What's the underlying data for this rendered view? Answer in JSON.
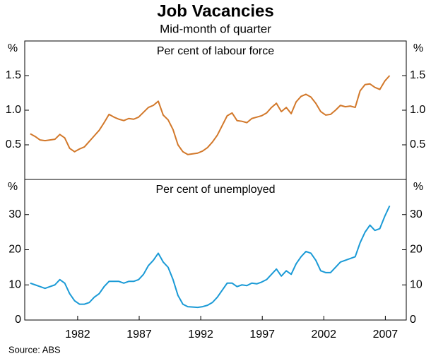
{
  "title": "Job Vacancies",
  "subtitle": "Mid-month of quarter",
  "source": "Source: ABS",
  "chart_data": [
    {
      "type": "line",
      "panel_title": "Per cent of labour force",
      "ylabel": "%",
      "xlim": [
        1977.7,
        2008.7
      ],
      "ylim": [
        0,
        2
      ],
      "yticks": [
        0.5,
        {
          "value": 1,
          "label": "1.0"
        },
        1.5
      ],
      "grid": false,
      "x": [
        1978.15,
        1978.55,
        1978.95,
        1979.35,
        1979.75,
        1980.15,
        1980.55,
        1980.95,
        1981.35,
        1981.75,
        1982.15,
        1982.55,
        1982.95,
        1983.35,
        1983.75,
        1984.15,
        1984.55,
        1984.95,
        1985.35,
        1985.75,
        1986.15,
        1986.55,
        1986.95,
        1987.35,
        1987.75,
        1988.15,
        1988.55,
        1988.95,
        1989.35,
        1989.75,
        1990.15,
        1990.55,
        1990.95,
        1991.35,
        1991.75,
        1992.15,
        1992.55,
        1992.95,
        1993.35,
        1993.75,
        1994.15,
        1994.55,
        1994.95,
        1995.35,
        1995.75,
        1996.15,
        1996.55,
        1996.95,
        1997.35,
        1997.75,
        1998.15,
        1998.55,
        1998.95,
        1999.35,
        1999.75,
        2000.15,
        2000.55,
        2000.95,
        2001.35,
        2001.75,
        2002.15,
        2002.55,
        2002.95,
        2003.35,
        2003.75,
        2004.15,
        2004.55,
        2004.95,
        2005.35,
        2005.75,
        2006.15,
        2006.55,
        2006.95,
        2007.35
      ],
      "series": [
        {
          "color": "#d2782a",
          "values": [
            0.66,
            0.62,
            0.57,
            0.56,
            0.57,
            0.58,
            0.65,
            0.6,
            0.45,
            0.4,
            0.44,
            0.47,
            0.55,
            0.63,
            0.71,
            0.82,
            0.94,
            0.9,
            0.87,
            0.85,
            0.88,
            0.87,
            0.9,
            0.97,
            1.04,
            1.07,
            1.13,
            0.93,
            0.86,
            0.72,
            0.5,
            0.4,
            0.36,
            0.37,
            0.38,
            0.41,
            0.46,
            0.54,
            0.64,
            0.78,
            0.92,
            0.96,
            0.85,
            0.84,
            0.82,
            0.88,
            0.9,
            0.92,
            0.96,
            1.04,
            1.1,
            0.98,
            1.04,
            0.95,
            1.12,
            1.2,
            1.23,
            1.19,
            1.1,
            0.98,
            0.93,
            0.94,
            1.0,
            1.07,
            1.05,
            1.06,
            1.04,
            1.28,
            1.37,
            1.38,
            1.33,
            1.3,
            1.42,
            1.5
          ]
        }
      ]
    },
    {
      "type": "line",
      "panel_title": "Per cent of unemployed",
      "ylabel": "%",
      "xlim": [
        1977.7,
        2008.7
      ],
      "ylim": [
        0,
        40
      ],
      "xticks": [
        1982,
        1987,
        1992,
        1997,
        2002,
        2007
      ],
      "yticks": [
        0,
        10,
        20,
        30
      ],
      "grid": false,
      "x": [
        1978.15,
        1978.55,
        1978.95,
        1979.35,
        1979.75,
        1980.15,
        1980.55,
        1980.95,
        1981.35,
        1981.75,
        1982.15,
        1982.55,
        1982.95,
        1983.35,
        1983.75,
        1984.15,
        1984.55,
        1984.95,
        1985.35,
        1985.75,
        1986.15,
        1986.55,
        1986.95,
        1987.35,
        1987.75,
        1988.15,
        1988.55,
        1988.95,
        1989.35,
        1989.75,
        1990.15,
        1990.55,
        1990.95,
        1991.35,
        1991.75,
        1992.15,
        1992.55,
        1992.95,
        1993.35,
        1993.75,
        1994.15,
        1994.55,
        1994.95,
        1995.35,
        1995.75,
        1996.15,
        1996.55,
        1996.95,
        1997.35,
        1997.75,
        1998.15,
        1998.55,
        1998.95,
        1999.35,
        1999.75,
        2000.15,
        2000.55,
        2000.95,
        2001.35,
        2001.75,
        2002.15,
        2002.55,
        2002.95,
        2003.35,
        2003.75,
        2004.15,
        2004.55,
        2004.95,
        2005.35,
        2005.75,
        2006.15,
        2006.55,
        2006.95,
        2007.35
      ],
      "series": [
        {
          "color": "#1a9ad6",
          "values": [
            10.5,
            10,
            9.5,
            9,
            9.5,
            10,
            11.5,
            10.5,
            7.5,
            5.5,
            4.5,
            4.5,
            5,
            6.5,
            7.5,
            9.5,
            11,
            11,
            11,
            10.5,
            11,
            11,
            11.5,
            13,
            15.5,
            17,
            19,
            16.5,
            15,
            11.5,
            7,
            4.5,
            3.8,
            3.7,
            3.6,
            3.8,
            4.2,
            5,
            6.5,
            8.5,
            10.5,
            10.5,
            9.5,
            10,
            9.8,
            10.5,
            10.3,
            10.8,
            11.5,
            13,
            14.5,
            12.5,
            14,
            13,
            16,
            18,
            19.5,
            19,
            17,
            14,
            13.5,
            13.5,
            15,
            16.5,
            17,
            17.5,
            18,
            22,
            25,
            27,
            25.5,
            26,
            29.5,
            32.5
          ]
        }
      ]
    }
  ]
}
